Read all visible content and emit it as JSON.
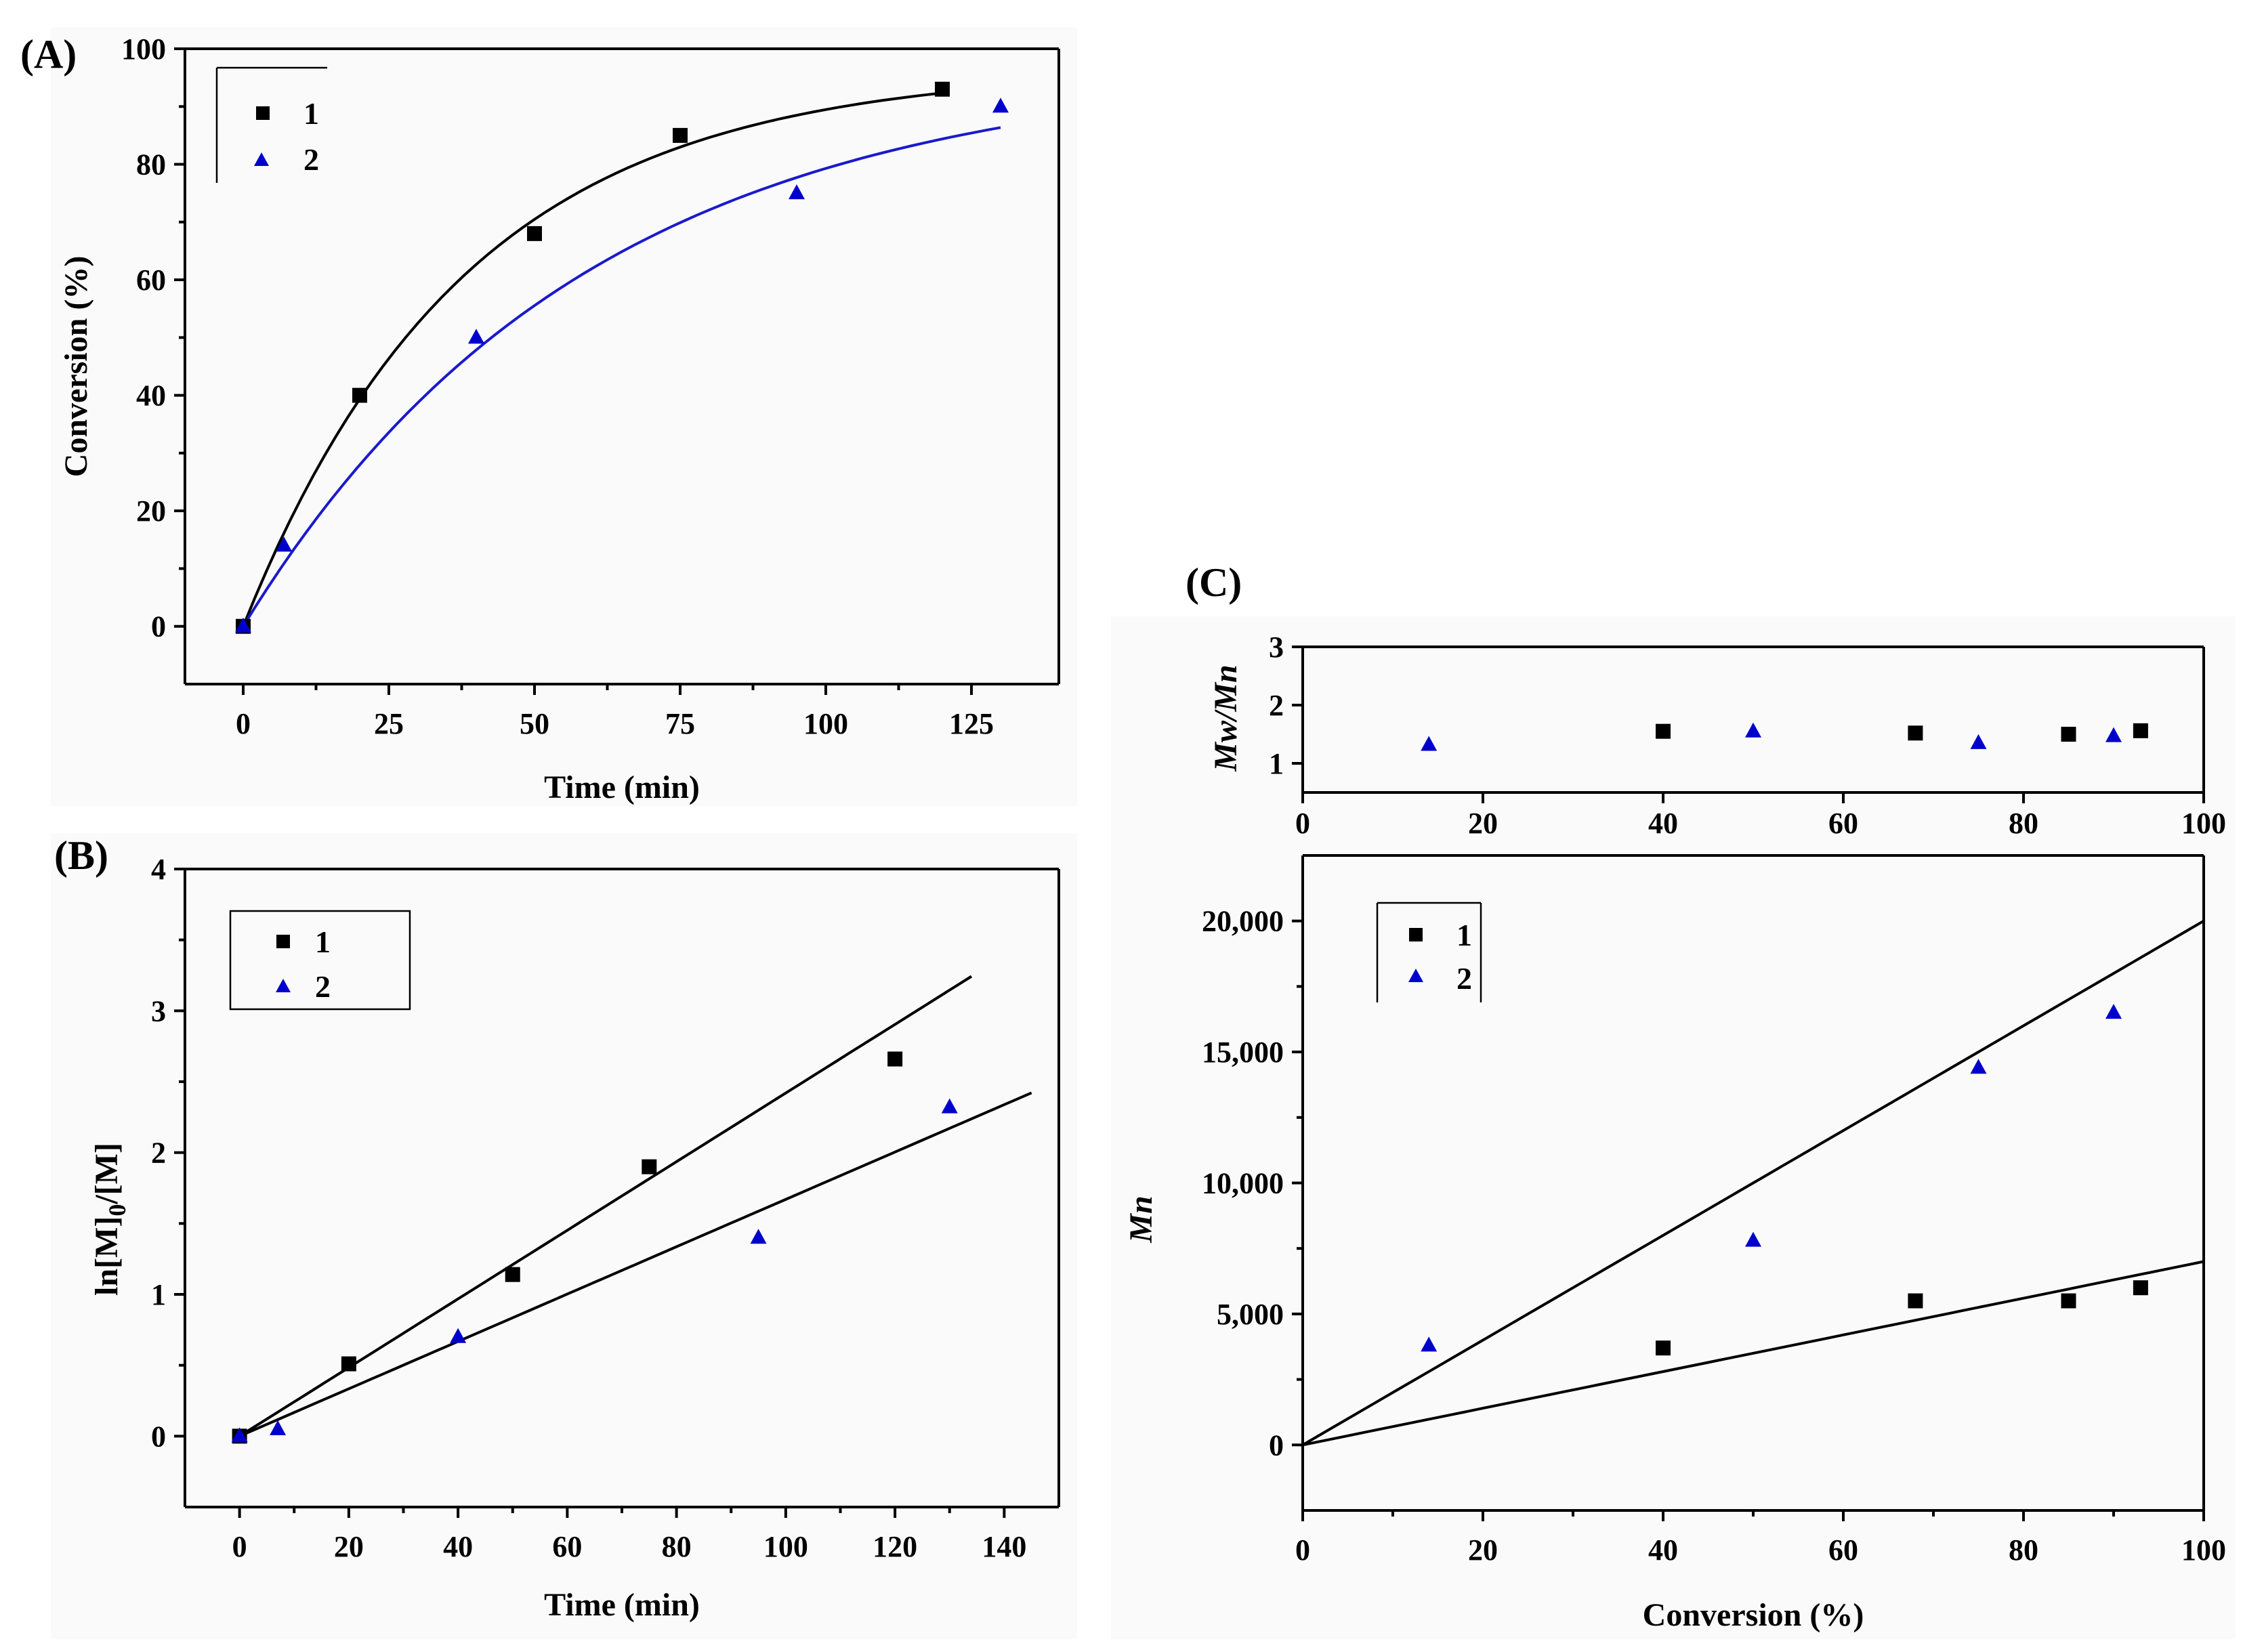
{
  "colors": {
    "series1": "#000000",
    "series2": "#0000cc",
    "fit2_panelA": "#1a1acc",
    "fit": "#000000"
  },
  "chart_data": [
    {
      "panel_label": "(A)",
      "type": "scatter",
      "xlabel": "Time (min)",
      "ylabel": "Conversion (%)",
      "xlim": [
        -10,
        140
      ],
      "ylim": [
        -10,
        100
      ],
      "xticks": [
        0,
        25,
        50,
        75,
        100,
        125
      ],
      "yticks": [
        0,
        20,
        40,
        60,
        80,
        100
      ],
      "legend": [
        "1",
        "2"
      ],
      "legend_position": "top-left",
      "series": [
        {
          "name": "1",
          "marker": "square",
          "color": "#000000",
          "x": [
            0,
            20,
            50,
            75,
            120
          ],
          "y": [
            0,
            40,
            68,
            85,
            93
          ]
        },
        {
          "name": "2",
          "marker": "triangle",
          "color": "#0000cc",
          "x": [
            0,
            7,
            40,
            95,
            130
          ],
          "y": [
            0,
            14,
            50,
            75,
            90
          ]
        }
      ],
      "fits": [
        {
          "series": "1",
          "model": "exponential",
          "formula": "y = A(1 - exp(-k x))",
          "A": 96.5,
          "k": 0.0262,
          "x_range": [
            0,
            120
          ],
          "color": "#000000"
        },
        {
          "series": "2",
          "model": "exponential",
          "formula": "y = A(1 - exp(-k x))",
          "A": 97.0,
          "k": 0.017,
          "x_range": [
            0,
            130
          ],
          "color": "#1a1acc"
        }
      ]
    },
    {
      "panel_label": "(B)",
      "type": "scatter",
      "xlabel": "Time (min)",
      "ylabel": "ln[M]0/[M]",
      "ylabel_subscript": "0",
      "xlim": [
        -10,
        150
      ],
      "ylim": [
        -0.5,
        4
      ],
      "xticks": [
        0,
        20,
        40,
        60,
        80,
        100,
        120,
        140
      ],
      "yticks": [
        0,
        1,
        2,
        3,
        4
      ],
      "legend": [
        "1",
        "2"
      ],
      "legend_position": "top-left",
      "series": [
        {
          "name": "1",
          "marker": "square",
          "color": "#000000",
          "x": [
            0,
            20,
            50,
            75,
            120
          ],
          "y": [
            0,
            0.51,
            1.14,
            1.9,
            2.66
          ]
        },
        {
          "name": "2",
          "marker": "triangle",
          "color": "#0000cc",
          "x": [
            0,
            7,
            40,
            95,
            130
          ],
          "y": [
            0,
            0.05,
            0.7,
            1.4,
            2.32
          ]
        }
      ],
      "fits": [
        {
          "series": "1",
          "model": "linear",
          "slope": 0.0242,
          "intercept": 0,
          "x_range": [
            0,
            134
          ],
          "color": "#000000"
        },
        {
          "series": "2",
          "model": "linear",
          "slope": 0.0167,
          "intercept": 0,
          "x_range": [
            0,
            145
          ],
          "color": "#000000"
        }
      ]
    },
    {
      "panel_label": "(C)",
      "type": "scatter",
      "xlabel": "",
      "ylabel": "Mw/Mn",
      "xlim": [
        0,
        100
      ],
      "ylim": [
        0.5,
        3
      ],
      "xticks": [
        0,
        20,
        40,
        60,
        80,
        100
      ],
      "yticks": [
        1,
        2,
        3
      ],
      "series": [
        {
          "name": "1",
          "marker": "square",
          "color": "#000000",
          "x": [
            40,
            68,
            85,
            93
          ],
          "y": [
            1.55,
            1.52,
            1.5,
            1.56
          ]
        },
        {
          "name": "2",
          "marker": "triangle",
          "color": "#0000cc",
          "x": [
            14,
            50,
            75,
            90
          ],
          "y": [
            1.32,
            1.55,
            1.35,
            1.47
          ]
        }
      ]
    },
    {
      "type": "scatter",
      "xlabel": "Conversion (%)",
      "ylabel": "Mn",
      "xlim": [
        0,
        100
      ],
      "ylim": [
        -2500,
        22500
      ],
      "xticks": [
        0,
        20,
        40,
        60,
        80,
        100
      ],
      "yticks": [
        0,
        5000,
        10000,
        15000,
        20000
      ],
      "ytick_labels": [
        "0",
        "5,000",
        "10,000",
        "15,000",
        "20,000"
      ],
      "legend": [
        "1",
        "2"
      ],
      "legend_position": "top-left",
      "series": [
        {
          "name": "1",
          "marker": "square",
          "color": "#000000",
          "x": [
            40,
            68,
            85,
            93
          ],
          "y": [
            3700,
            5500,
            5500,
            6000
          ]
        },
        {
          "name": "2",
          "marker": "triangle",
          "color": "#0000cc",
          "x": [
            14,
            50,
            75,
            90
          ],
          "y": [
            3800,
            7800,
            14400,
            16500
          ]
        }
      ],
      "fits": [
        {
          "series": "2",
          "model": "linear",
          "slope": 200,
          "intercept": 0,
          "x_range": [
            0,
            100
          ],
          "color": "#000000"
        },
        {
          "series": "1",
          "model": "linear",
          "slope": 70,
          "intercept": 0,
          "x_range": [
            0,
            100
          ],
          "color": "#000000"
        }
      ]
    }
  ]
}
